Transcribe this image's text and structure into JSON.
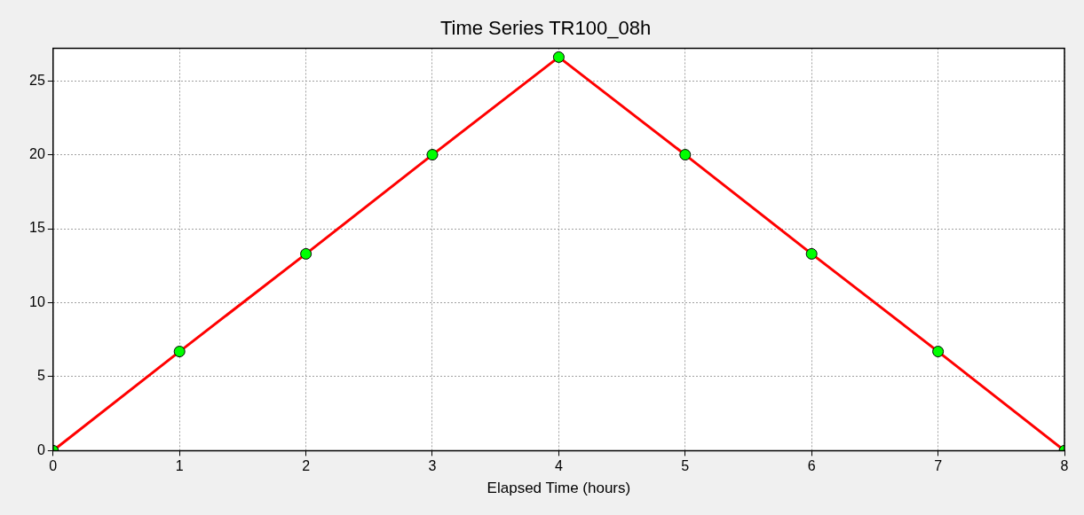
{
  "chart_data": {
    "type": "line",
    "title": "Time Series TR100_08h",
    "xlabel": "Elapsed Time (hours)",
    "x": [
      0,
      1,
      2,
      3,
      4,
      5,
      6,
      7,
      8
    ],
    "series": [
      {
        "color": "#ff0000",
        "values": [
          0,
          6.7,
          13.3,
          20,
          26.6,
          20,
          13.3,
          6.7,
          0
        ]
      }
    ],
    "xlim": [
      0,
      8
    ],
    "xticks": [
      0,
      1,
      2,
      3,
      4,
      5,
      6,
      7,
      8
    ],
    "ylim": [
      0,
      27.2
    ],
    "yticks": [
      0,
      5,
      10,
      15,
      20,
      25
    ],
    "grid": true,
    "legend": false,
    "marker": "circle",
    "line_style": "solid"
  }
}
